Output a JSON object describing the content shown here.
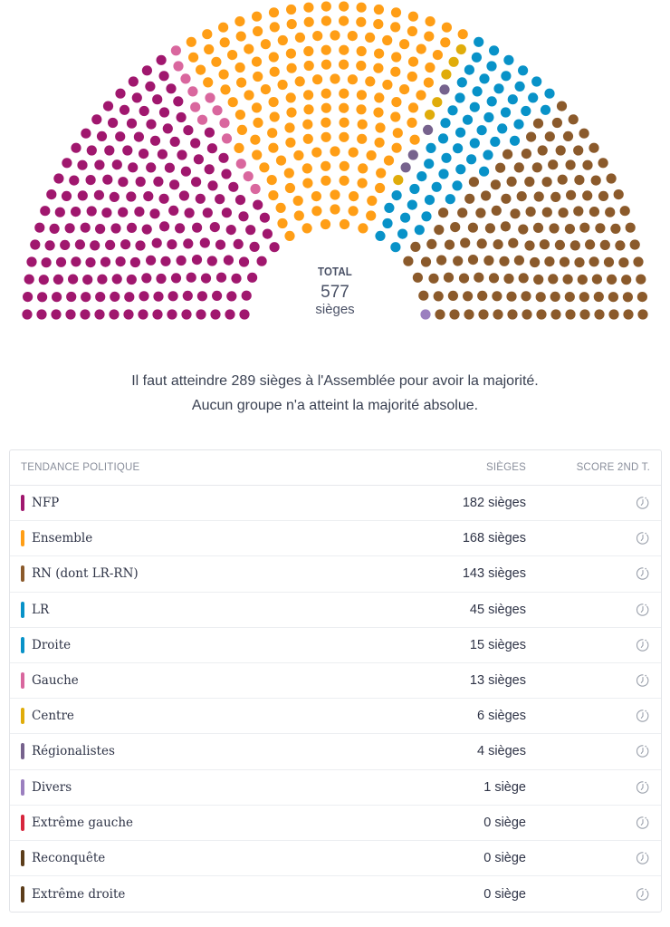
{
  "hemicycle": {
    "total_label": "TOTAL",
    "total_value": "577",
    "total_unit": "sièges"
  },
  "notes": {
    "line1": "Il faut atteindre 289 sièges à l'Assemblée pour avoir la majorité.",
    "line2": "Aucun groupe n'a atteint la majorité absolue."
  },
  "table": {
    "headers": {
      "party": "TENDANCE POLITIQUE",
      "seats": "SIÈGES",
      "score": "SCORE 2ND T."
    },
    "rows": [
      {
        "name": "NFP",
        "seats": "182 sièges",
        "color": "#a0176e",
        "score_icon": "clock-icon"
      },
      {
        "name": "Ensemble",
        "seats": "168 sièges",
        "color": "#ff9e16",
        "score_icon": "clock-icon"
      },
      {
        "name": "RN (dont LR-RN)",
        "seats": "143 sièges",
        "color": "#8b5a2b",
        "score_icon": "clock-icon"
      },
      {
        "name": "LR",
        "seats": "45 sièges",
        "color": "#0892c8",
        "score_icon": "clock-icon"
      },
      {
        "name": "Droite",
        "seats": "15 sièges",
        "color": "#0892c8",
        "score_icon": "clock-icon"
      },
      {
        "name": "Gauche",
        "seats": "13 sièges",
        "color": "#d9679e",
        "score_icon": "clock-icon"
      },
      {
        "name": "Centre",
        "seats": "6 sièges",
        "color": "#e0ac0a",
        "score_icon": "clock-icon"
      },
      {
        "name": "Régionalistes",
        "seats": "4 sièges",
        "color": "#76628d",
        "score_icon": "clock-icon"
      },
      {
        "name": "Divers",
        "seats": "1 siège",
        "color": "#9b7fbf",
        "score_icon": "clock-icon"
      },
      {
        "name": "Extrême gauche",
        "seats": "0 siège",
        "color": "#d7263d",
        "score_icon": "clock-icon"
      },
      {
        "name": "Reconquête",
        "seats": "0 siège",
        "color": "#5c3d1a",
        "score_icon": "clock-icon"
      },
      {
        "name": "Extrême droite",
        "seats": "0 siège",
        "color": "#5c3d1a",
        "score_icon": "clock-icon"
      }
    ]
  },
  "chart_data": {
    "type": "parliament",
    "title": "Répartition des sièges",
    "total": 577,
    "majority": 289,
    "seat_order_left_to_right": [
      {
        "name": "NFP",
        "seats": 182,
        "color": "#a0176e"
      },
      {
        "name": "Gauche",
        "seats": 13,
        "color": "#d9679e"
      },
      {
        "name": "Ensemble",
        "seats": 168,
        "color": "#ff9e16"
      },
      {
        "name": "Centre",
        "seats": 6,
        "color": "#e0ac0a"
      },
      {
        "name": "Régionalistes",
        "seats": 4,
        "color": "#76628d"
      },
      {
        "name": "LR",
        "seats": 45,
        "color": "#0892c8"
      },
      {
        "name": "Droite",
        "seats": 15,
        "color": "#0892c8"
      },
      {
        "name": "RN (dont LR-RN)",
        "seats": 143,
        "color": "#8b5a2b"
      },
      {
        "name": "Divers",
        "seats": 1,
        "color": "#9b7fbf"
      }
    ],
    "categories": [
      "NFP",
      "Ensemble",
      "RN (dont LR-RN)",
      "LR",
      "Droite",
      "Gauche",
      "Centre",
      "Régionalistes",
      "Divers",
      "Extrême gauche",
      "Reconquête",
      "Extrême droite"
    ],
    "values": [
      182,
      168,
      143,
      45,
      15,
      13,
      6,
      4,
      1,
      0,
      0,
      0
    ]
  }
}
